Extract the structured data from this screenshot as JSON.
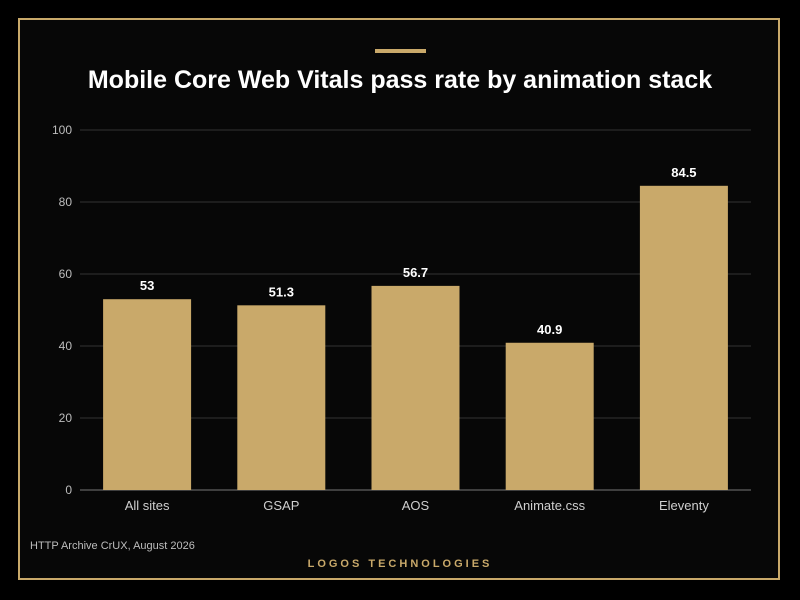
{
  "chart_data": {
    "type": "bar",
    "title": "Mobile Core Web Vitals pass rate by animation stack",
    "categories": [
      "All sites",
      "GSAP",
      "AOS",
      "Animate.css",
      "Eleventy"
    ],
    "values": [
      53,
      51.3,
      56.7,
      40.9,
      84.5
    ],
    "value_labels": [
      "53",
      "51.3",
      "56.7",
      "40.9",
      "84.5"
    ],
    "yticks": [
      0,
      20,
      40,
      60,
      80,
      100
    ],
    "ylim": [
      0,
      100
    ],
    "xlabel": "",
    "ylabel": "",
    "grid": true,
    "bar_color": "#c9a96a"
  },
  "footer": {
    "source": "HTTP Archive CrUX, August 2026",
    "brand": "LOGOS TECHNOLOGIES"
  },
  "colors": {
    "accent": "#c9a96a",
    "background": "#000000",
    "gridline": "#333333"
  }
}
